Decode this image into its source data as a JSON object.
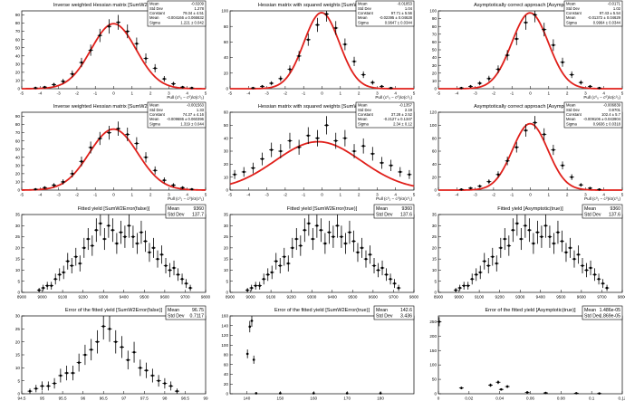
{
  "chart_data": [
    {
      "type": "scatter",
      "title": "Inverse weighted Hessian matrix [SumW2Error(false)]",
      "xlabel": "Pull (c⁰₀ − c⁰)/σ(c⁰₀)",
      "xlim": [
        -5,
        5
      ],
      "ylim": [
        0,
        95
      ],
      "xticks": [
        -5,
        -4,
        -3,
        -2,
        -1,
        0,
        1,
        2,
        3,
        4,
        5
      ],
      "yticks": [
        0,
        10,
        20,
        30,
        40,
        50,
        60,
        70,
        80,
        90
      ],
      "x": [
        -4.25,
        -3.75,
        -3.25,
        -2.75,
        -2.25,
        -1.75,
        -1.25,
        -0.75,
        -0.25,
        0.25,
        0.75,
        1.25,
        1.75,
        2.25,
        2.75,
        3.25,
        3.75,
        4.25
      ],
      "y": [
        1,
        2,
        5,
        9,
        18,
        32,
        47,
        65,
        76,
        81,
        70,
        55,
        37,
        25,
        12,
        6,
        2,
        1
      ],
      "fit": {
        "constant": 79.34,
        "mean": -0.0042,
        "sigma": 1.221
      },
      "stats": [
        [
          "Mean",
          "-0.0209"
        ],
        [
          "Std Dev",
          "1.278"
        ],
        [
          "Constant",
          "79.34 ± 4.51"
        ],
        [
          "Mean",
          "-0.004166 ± 0.066632"
        ],
        [
          "Sigma",
          "1.221 ± 0.042"
        ]
      ]
    },
    {
      "type": "scatter",
      "title": "Hessian matrix with squared weights [SumW2Error(true)]",
      "xlabel": "Pull (c⁰₀ − c⁰)/σ(c⁰₀)",
      "xlim": [
        -5,
        5
      ],
      "ylim": [
        0,
        100
      ],
      "xticks": [
        -5,
        -4,
        -3,
        -2,
        -1,
        0,
        1,
        2,
        3,
        4,
        5
      ],
      "yticks": [
        0,
        20,
        40,
        60,
        80,
        100
      ],
      "x": [
        -3.75,
        -3.25,
        -2.75,
        -2.25,
        -1.75,
        -1.25,
        -0.75,
        -0.25,
        0.25,
        0.75,
        1.25,
        1.75,
        2.25,
        2.75,
        3.25,
        3.75
      ],
      "y": [
        1,
        3,
        7,
        13,
        25,
        42,
        63,
        82,
        96,
        78,
        57,
        35,
        18,
        8,
        3,
        1
      ],
      "fit": {
        "constant": 97.71,
        "mean": -0.0239,
        "sigma": 0.9647
      },
      "stats": [
        [
          "Mean",
          "-0.01853"
        ],
        [
          "Std Dev",
          "1.04"
        ],
        [
          "Constant",
          "97.71 ± 5.56"
        ],
        [
          "Mean",
          "-0.02395 ± 0.04628"
        ],
        [
          "Sigma",
          "0.9647 ± 0.0344"
        ]
      ]
    },
    {
      "type": "scatter",
      "title": "Asymptotically correct approach [Asymptotic(true)]",
      "xlabel": "Pull (c⁰₀ − c⁰)/σ(c⁰₀)",
      "xlim": [
        -5,
        5
      ],
      "ylim": [
        0,
        100
      ],
      "xticks": [
        -5,
        -4,
        -3,
        -2,
        -1,
        0,
        1,
        2,
        3,
        4,
        5
      ],
      "yticks": [
        0,
        10,
        20,
        30,
        40,
        50,
        60,
        70,
        80,
        90,
        100
      ],
      "x": [
        -3.75,
        -3.25,
        -2.75,
        -2.25,
        -1.75,
        -1.25,
        -0.75,
        -0.25,
        0.25,
        0.75,
        1.25,
        1.75,
        2.25,
        2.75,
        3.25,
        3.75
      ],
      "y": [
        1,
        3,
        7,
        13,
        25,
        43,
        64,
        85,
        95,
        76,
        56,
        34,
        18,
        8,
        3,
        1
      ],
      "fit": {
        "constant": 97.43,
        "mean": -0.0137,
        "sigma": 0.9964
      },
      "stats": [
        [
          "Mean",
          "-0.0171"
        ],
        [
          "Std Dev",
          "1.02"
        ],
        [
          "Constant",
          "97.43 ± 5.54"
        ],
        [
          "Mean",
          "-0.01372 ± 0.04629"
        ],
        [
          "Sigma",
          "0.9964 ± 0.0344"
        ]
      ]
    },
    {
      "type": "scatter",
      "title": "Inverse weighted Hessian matrix [SumW2Error(false)]",
      "xlabel": "Pull (c⁰₁ − c⁰)/σ(c⁰₁)",
      "xlim": [
        -5,
        5
      ],
      "ylim": [
        0,
        95
      ],
      "xticks": [
        -5,
        -4,
        -3,
        -2,
        -1,
        0,
        1,
        2,
        3,
        4,
        5
      ],
      "yticks": [
        0,
        10,
        20,
        30,
        40,
        50,
        60,
        70,
        80,
        90
      ],
      "x": [
        -4.25,
        -3.75,
        -3.25,
        -2.75,
        -2.25,
        -1.75,
        -1.25,
        -0.75,
        -0.25,
        0.25,
        0.75,
        1.25,
        1.75,
        2.25,
        2.75,
        3.25,
        3.75,
        4.25
      ],
      "y": [
        1,
        3,
        6,
        10,
        20,
        35,
        52,
        63,
        70,
        75,
        68,
        57,
        40,
        24,
        12,
        6,
        3,
        1
      ],
      "fit": {
        "constant": 74.37,
        "mean": -0.0097,
        "sigma": 1.319
      },
      "stats": [
        [
          "Mean",
          "-0.001563"
        ],
        [
          "Std Dev",
          "1.33"
        ],
        [
          "Constant",
          "74.37 ± 4.16"
        ],
        [
          "Mean",
          "-0.009686 ± 0.060396"
        ],
        [
          "Sigma",
          "1.319 ± 0.044"
        ]
      ]
    },
    {
      "type": "scatter",
      "title": "Hessian matrix with squared weights [SumW2Error(true)]",
      "xlabel": "Pull (c⁰₁ − c⁰)/σ(c⁰₁)",
      "xlim": [
        -5,
        5
      ],
      "ylim": [
        0,
        60
      ],
      "xticks": [
        -5,
        -4,
        -3,
        -2,
        -1,
        0,
        1,
        2,
        3,
        4,
        5
      ],
      "yticks": [
        0,
        10,
        20,
        30,
        40,
        50,
        60
      ],
      "x": [
        -4.75,
        -4.25,
        -3.75,
        -3.25,
        -2.75,
        -2.25,
        -1.75,
        -1.25,
        -0.75,
        -0.25,
        0.25,
        0.75,
        1.25,
        1.75,
        2.25,
        2.75,
        3.25,
        3.75,
        4.25,
        4.75
      ],
      "y": [
        12,
        14,
        17,
        24,
        31,
        30,
        38,
        33,
        42,
        40,
        50,
        38,
        40,
        30,
        34,
        28,
        21,
        19,
        14,
        12
      ],
      "fit": {
        "constant": 37.28,
        "mean": -0.2127,
        "sigma": 2.34
      },
      "stats": [
        [
          "Mean",
          "-0.1357"
        ],
        [
          "Std Dev",
          "2.19"
        ],
        [
          "Constant",
          "37.28 ± 2.52"
        ],
        [
          "Mean",
          "-0.2127 ± 0.1347"
        ],
        [
          "Sigma",
          "2.34 ± 0.12"
        ]
      ]
    },
    {
      "type": "scatter",
      "title": "Asymptotically correct approach [Asymptotic(true)]",
      "xlabel": "Pull (c⁰₁ − c⁰)/σ(c⁰₁)",
      "xlim": [
        -5,
        5
      ],
      "ylim": [
        0,
        120
      ],
      "xticks": [
        -5,
        -4,
        -3,
        -2,
        -1,
        0,
        1,
        2,
        3,
        4,
        5
      ],
      "yticks": [
        0,
        20,
        40,
        60,
        80,
        100,
        120
      ],
      "x": [
        -3.75,
        -3.25,
        -2.75,
        -2.25,
        -1.75,
        -1.25,
        -0.75,
        -0.25,
        0.25,
        0.75,
        1.25,
        1.75,
        2.25,
        2.75,
        3.25,
        3.75
      ],
      "y": [
        1,
        3,
        6,
        13,
        24,
        45,
        66,
        92,
        104,
        86,
        62,
        38,
        20,
        8,
        3,
        1
      ],
      "fit": {
        "constant": 102.4,
        "mean": -0.0091,
        "sigma": 0.9636
      },
      "stats": [
        [
          "Mean",
          "-0.006839"
        ],
        [
          "Std Dev",
          "0.9701"
        ],
        [
          "Constant",
          "102.4 ± 5.7"
        ],
        [
          "Mean",
          "-0.009106 ± 0.043904"
        ],
        [
          "Sigma",
          "0.9636 ± 0.0318"
        ]
      ]
    },
    {
      "type": "scatter",
      "title": "Fitted yield [SumW2Error(false)]",
      "xlim": [
        8900,
        9800
      ],
      "ylim": [
        0,
        35
      ],
      "xticks": [
        8900,
        9000,
        9100,
        9200,
        9300,
        9400,
        9500,
        9600,
        9700,
        9800
      ],
      "yticks": [
        0,
        5,
        10,
        15,
        20,
        25,
        30,
        35
      ],
      "x": [
        8985,
        9005,
        9025,
        9045,
        9065,
        9085,
        9105,
        9125,
        9145,
        9165,
        9185,
        9205,
        9225,
        9245,
        9265,
        9285,
        9305,
        9325,
        9345,
        9365,
        9385,
        9405,
        9425,
        9445,
        9465,
        9485,
        9505,
        9525,
        9545,
        9565,
        9585,
        9605,
        9625,
        9645,
        9665,
        9685,
        9705,
        9725
      ],
      "y": [
        1,
        2,
        3,
        3,
        6,
        8,
        9,
        14,
        12,
        16,
        13,
        20,
        24,
        21,
        28,
        31,
        24,
        30,
        28,
        22,
        27,
        25,
        30,
        25,
        22,
        27,
        23,
        18,
        20,
        15,
        17,
        12,
        10,
        11,
        8,
        6,
        4,
        2
      ],
      "stats": [
        [
          "Mean",
          "9360"
        ],
        [
          "Std Dev",
          "137.7"
        ]
      ]
    },
    {
      "type": "scatter",
      "title": "Fitted yield [SumW2Error(true)]",
      "xlim": [
        8900,
        9800
      ],
      "ylim": [
        0,
        35
      ],
      "xticks": [
        8900,
        9000,
        9100,
        9200,
        9300,
        9400,
        9500,
        9600,
        9700,
        9800
      ],
      "yticks": [
        0,
        5,
        10,
        15,
        20,
        25,
        30,
        35
      ],
      "x": [
        8985,
        9005,
        9025,
        9045,
        9065,
        9085,
        9105,
        9125,
        9145,
        9165,
        9185,
        9205,
        9225,
        9245,
        9265,
        9285,
        9305,
        9325,
        9345,
        9365,
        9385,
        9405,
        9425,
        9445,
        9465,
        9485,
        9505,
        9525,
        9545,
        9565,
        9585,
        9605,
        9625,
        9645,
        9665,
        9685,
        9705,
        9725
      ],
      "y": [
        1,
        2,
        3,
        3,
        6,
        8,
        9,
        14,
        12,
        16,
        13,
        20,
        24,
        21,
        28,
        31,
        24,
        30,
        28,
        22,
        27,
        25,
        30,
        25,
        22,
        27,
        23,
        18,
        20,
        15,
        17,
        12,
        10,
        11,
        8,
        6,
        4,
        2
      ],
      "stats": [
        [
          "Mean",
          "9360"
        ],
        [
          "Std Dev",
          "137.6"
        ]
      ]
    },
    {
      "type": "scatter",
      "title": "Fitted yield [Asymptotic(true)]",
      "xlim": [
        8900,
        9800
      ],
      "ylim": [
        0,
        35
      ],
      "xticks": [
        8900,
        9000,
        9100,
        9200,
        9300,
        9400,
        9500,
        9600,
        9700,
        9800
      ],
      "yticks": [
        0,
        5,
        10,
        15,
        20,
        25,
        30,
        35
      ],
      "x": [
        8985,
        9005,
        9025,
        9045,
        9065,
        9085,
        9105,
        9125,
        9145,
        9165,
        9185,
        9205,
        9225,
        9245,
        9265,
        9285,
        9305,
        9325,
        9345,
        9365,
        9385,
        9405,
        9425,
        9445,
        9465,
        9485,
        9505,
        9525,
        9545,
        9565,
        9585,
        9605,
        9625,
        9645,
        9665,
        9685,
        9705,
        9725
      ],
      "y": [
        1,
        2,
        3,
        3,
        6,
        8,
        9,
        14,
        12,
        16,
        13,
        20,
        24,
        21,
        28,
        31,
        24,
        30,
        28,
        22,
        27,
        25,
        30,
        25,
        22,
        27,
        23,
        18,
        20,
        15,
        17,
        12,
        10,
        11,
        8,
        6,
        4,
        2
      ],
      "stats": [
        [
          "Mean",
          "9360"
        ],
        [
          "Std Dev",
          "137.6"
        ]
      ]
    },
    {
      "type": "scatter",
      "title": "Error of the fitted yield [SumW2Error(false)]",
      "xlim": [
        94.5,
        99
      ],
      "ylim": [
        0,
        30
      ],
      "xticks": [
        94.5,
        95,
        95.5,
        96,
        96.5,
        97,
        97.5,
        98,
        98.5,
        99
      ],
      "yticks": [
        0,
        5,
        10,
        15,
        20,
        25,
        30
      ],
      "x": [
        94.7,
        94.85,
        95.0,
        95.15,
        95.3,
        95.45,
        95.6,
        95.75,
        95.9,
        96.05,
        96.2,
        96.35,
        96.5,
        96.65,
        96.8,
        96.95,
        97.1,
        97.25,
        97.4,
        97.55,
        97.7,
        97.85,
        98.0,
        98.15,
        98.3
      ],
      "y": [
        1,
        2,
        3,
        3,
        4,
        7,
        8,
        8,
        12,
        15,
        17,
        20,
        26,
        25,
        20,
        18,
        13,
        16,
        10,
        9,
        7,
        5,
        4,
        3,
        1
      ],
      "stats": [
        [
          "Mean",
          "96.75"
        ],
        [
          "Std Dev",
          "0.7117"
        ]
      ]
    },
    {
      "type": "scatter",
      "title": "Error of the fitted yield [SumW2Error(true)]",
      "xlim": [
        135,
        190
      ],
      "ylim": [
        0,
        160
      ],
      "xticks": [
        140,
        150,
        160,
        170,
        180
      ],
      "yticks": [
        0,
        20,
        40,
        60,
        80,
        100,
        120,
        140,
        160
      ],
      "x": [
        140.2,
        140.9,
        141.5,
        142.1,
        142.8,
        150,
        160,
        170,
        180
      ],
      "y": [
        82,
        138,
        150,
        70,
        1,
        1,
        1,
        1,
        1
      ],
      "stats": [
        [
          "Mean",
          "142.6"
        ],
        [
          "Std Dev",
          "3.436"
        ]
      ]
    },
    {
      "type": "scatter",
      "title": "Error of the fitted yield [Asymptotic(true)]",
      "xlim": [
        0,
        0.12
      ],
      "ylim": [
        0,
        270
      ],
      "xticks": [
        0,
        0.02,
        0.04,
        0.06,
        0.08,
        0.1,
        0.12
      ],
      "xtick_labels": [
        "0",
        "0.02",
        "0.04",
        "0.06",
        "0.08",
        "0.1",
        "0.12"
      ],
      "x_exponent": "×10⁻³",
      "yticks": [
        0,
        50,
        100,
        150,
        200,
        250
      ],
      "x": [
        0.0005,
        0.015,
        0.034,
        0.039,
        0.041,
        0.045,
        0.058,
        0.07,
        0.09,
        0.105
      ],
      "y": [
        250,
        20,
        30,
        40,
        15,
        25,
        5,
        3,
        2,
        1
      ],
      "stats": [
        [
          "Mean",
          "1.486e-05"
        ],
        [
          "Std Dev",
          "1.869e-05"
        ]
      ]
    }
  ]
}
